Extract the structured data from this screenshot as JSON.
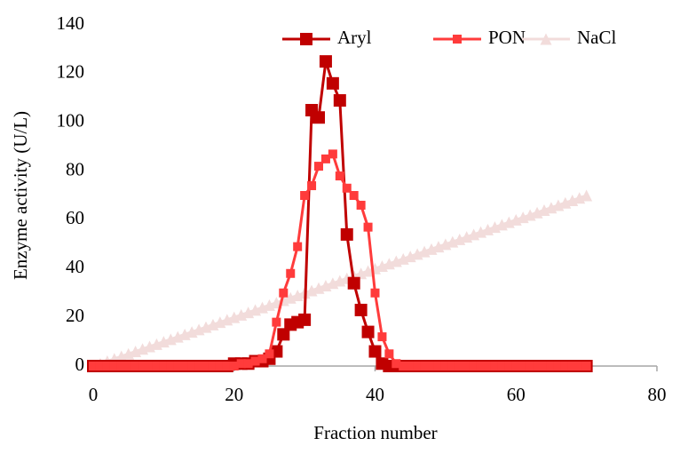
{
  "chart_data": {
    "type": "line",
    "xlabel": "Fraction number",
    "ylabel": "Enzyme activity (U/L)",
    "x": [
      0,
      1,
      2,
      3,
      4,
      5,
      6,
      7,
      8,
      9,
      10,
      11,
      12,
      13,
      14,
      15,
      16,
      17,
      18,
      19,
      20,
      21,
      22,
      23,
      24,
      25,
      26,
      27,
      28,
      29,
      30,
      31,
      32,
      33,
      34,
      35,
      36,
      37,
      38,
      39,
      40,
      41,
      42,
      43,
      44,
      45,
      46,
      47,
      48,
      49,
      50,
      51,
      52,
      53,
      54,
      55,
      56,
      57,
      58,
      59,
      60,
      61,
      62,
      63,
      64,
      65,
      66,
      67,
      68,
      69,
      70
    ],
    "series": [
      {
        "name": "Aryl",
        "color": "#c00000",
        "marker": "square",
        "values": [
          0,
          0,
          0,
          0,
          0,
          0,
          0,
          0,
          0,
          0,
          0,
          0,
          0,
          0,
          0,
          0,
          0,
          0,
          0,
          0,
          1,
          1,
          1,
          2,
          2,
          3,
          6,
          13,
          17,
          18,
          19,
          105,
          102,
          125,
          116,
          109,
          54,
          34,
          23,
          14,
          6,
          1,
          0,
          0,
          0,
          0,
          0,
          0,
          0,
          0,
          0,
          0,
          0,
          0,
          0,
          0,
          0,
          0,
          0,
          0,
          0,
          0,
          0,
          0,
          0,
          0,
          0,
          0,
          0,
          0,
          0
        ]
      },
      {
        "name": "PON",
        "color": "#ff3b3b",
        "marker": "square",
        "values": [
          0,
          0,
          0,
          0,
          0,
          0,
          0,
          0,
          0,
          0,
          0,
          0,
          0,
          0,
          0,
          0,
          0,
          0,
          0,
          0,
          0,
          1,
          1,
          2,
          3,
          5,
          18,
          30,
          38,
          49,
          70,
          74,
          82,
          85,
          87,
          78,
          73,
          70,
          66,
          57,
          30,
          12,
          5,
          1,
          0,
          0,
          0,
          0,
          0,
          0,
          0,
          0,
          0,
          0,
          0,
          0,
          0,
          0,
          0,
          0,
          0,
          0,
          0,
          0,
          0,
          0,
          0,
          0,
          0,
          0,
          0
        ]
      },
      {
        "name": "NaCl",
        "color": "#f2dcdb",
        "marker": "triangle",
        "values": [
          0,
          1,
          2,
          3,
          4,
          5,
          6,
          7,
          8,
          9,
          10,
          11,
          12,
          13,
          14,
          15,
          16,
          17,
          18,
          19,
          20,
          21,
          22,
          23,
          24,
          25,
          26,
          27,
          28,
          29,
          30,
          31,
          32,
          33,
          34,
          35,
          36,
          37,
          38,
          39,
          40,
          41,
          42,
          43,
          44,
          45,
          46,
          47,
          48,
          49,
          50,
          51,
          52,
          53,
          54,
          55,
          56,
          57,
          58,
          59,
          60,
          61,
          62,
          63,
          64,
          65,
          66,
          67,
          68,
          69,
          70
        ]
      }
    ],
    "xlim": [
      0,
      80
    ],
    "xticks": [
      0,
      20,
      40,
      60,
      80
    ],
    "ylim": [
      0,
      140
    ],
    "yticks": [
      0,
      20,
      40,
      60,
      80,
      100,
      120,
      140
    ],
    "grid": false,
    "legend": "top right"
  }
}
